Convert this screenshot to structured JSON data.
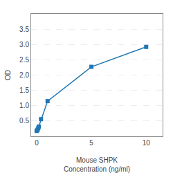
{
  "chart_data": {
    "type": "line",
    "x": [
      0.0,
      0.05,
      0.1,
      0.15,
      0.2,
      0.4,
      1.0,
      5.0,
      10.0
    ],
    "values": [
      0.175,
      0.195,
      0.22,
      0.27,
      0.32,
      0.56,
      1.15,
      2.27,
      2.92
    ],
    "marker": "square",
    "line_style": "solid",
    "xlabel": "Mouse SHPK\nConcentration (ng/ml)",
    "ylabel": "OD",
    "xlim": [
      -0.5,
      11.5
    ],
    "ylim": [
      0.0,
      4.0
    ],
    "xticks": [
      0,
      5,
      10
    ],
    "yticks": [
      0.5,
      {
        "value": 1.0,
        "label": "1.0"
      },
      1.5,
      {
        "value": 2.0,
        "label": "2.0"
      },
      2.5,
      {
        "value": 3.0,
        "label": "3.0"
      },
      3.5
    ],
    "grid": "y"
  }
}
